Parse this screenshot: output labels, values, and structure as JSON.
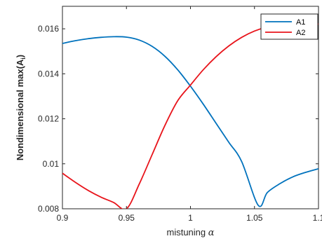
{
  "chart_data": {
    "type": "line",
    "title": "",
    "xlabel": {
      "text": "mistuning ",
      "symbol": "α"
    },
    "ylabel": {
      "text": "Nondimensional max(A",
      "subscript": "i",
      "suffix": ")"
    },
    "xlim": [
      0.9,
      1.1
    ],
    "ylim": [
      0.008,
      0.017
    ],
    "x_ticks": [
      0.9,
      0.95,
      1.0,
      1.05,
      1.1
    ],
    "x_tick_labels": [
      "0.9",
      "0.95",
      "1",
      "1.05",
      "1.1"
    ],
    "y_ticks": [
      0.008,
      0.01,
      0.012,
      0.014,
      0.016
    ],
    "y_tick_labels": [
      "0.008",
      "0.01",
      "0.012",
      "0.014",
      "0.016"
    ],
    "grid": false,
    "legend_position": "top-right",
    "series": [
      {
        "name": "A1",
        "color": "#0072BD",
        "x": [
          0.9,
          0.91,
          0.92,
          0.93,
          0.94,
          0.95,
          0.96,
          0.97,
          0.98,
          0.99,
          1.0,
          1.01,
          1.02,
          1.03,
          1.04,
          1.053,
          1.06,
          1.07,
          1.08,
          1.09,
          1.1
        ],
        "y": [
          0.01535,
          0.01547,
          0.01556,
          0.01562,
          0.01565,
          0.01563,
          0.0155,
          0.01522,
          0.01478,
          0.01418,
          0.01345,
          0.01265,
          0.0118,
          0.01095,
          0.0101,
          0.00815,
          0.00872,
          0.00912,
          0.00942,
          0.00962,
          0.00978
        ]
      },
      {
        "name": "A2",
        "color": "#E8141B",
        "x": [
          0.9,
          0.91,
          0.92,
          0.93,
          0.94,
          0.95,
          0.96,
          0.97,
          0.98,
          0.99,
          1.0,
          1.01,
          1.02,
          1.03,
          1.04,
          1.05,
          1.06,
          1.07,
          1.08,
          1.09,
          1.1
        ],
        "y": [
          0.00958,
          0.00918,
          0.00882,
          0.00852,
          0.00828,
          0.008,
          0.0091,
          0.0104,
          0.0117,
          0.0128,
          0.0135,
          0.01418,
          0.01476,
          0.01524,
          0.01562,
          0.0159,
          0.01608,
          0.01617,
          0.01622,
          0.01622,
          0.01621
        ]
      }
    ]
  }
}
